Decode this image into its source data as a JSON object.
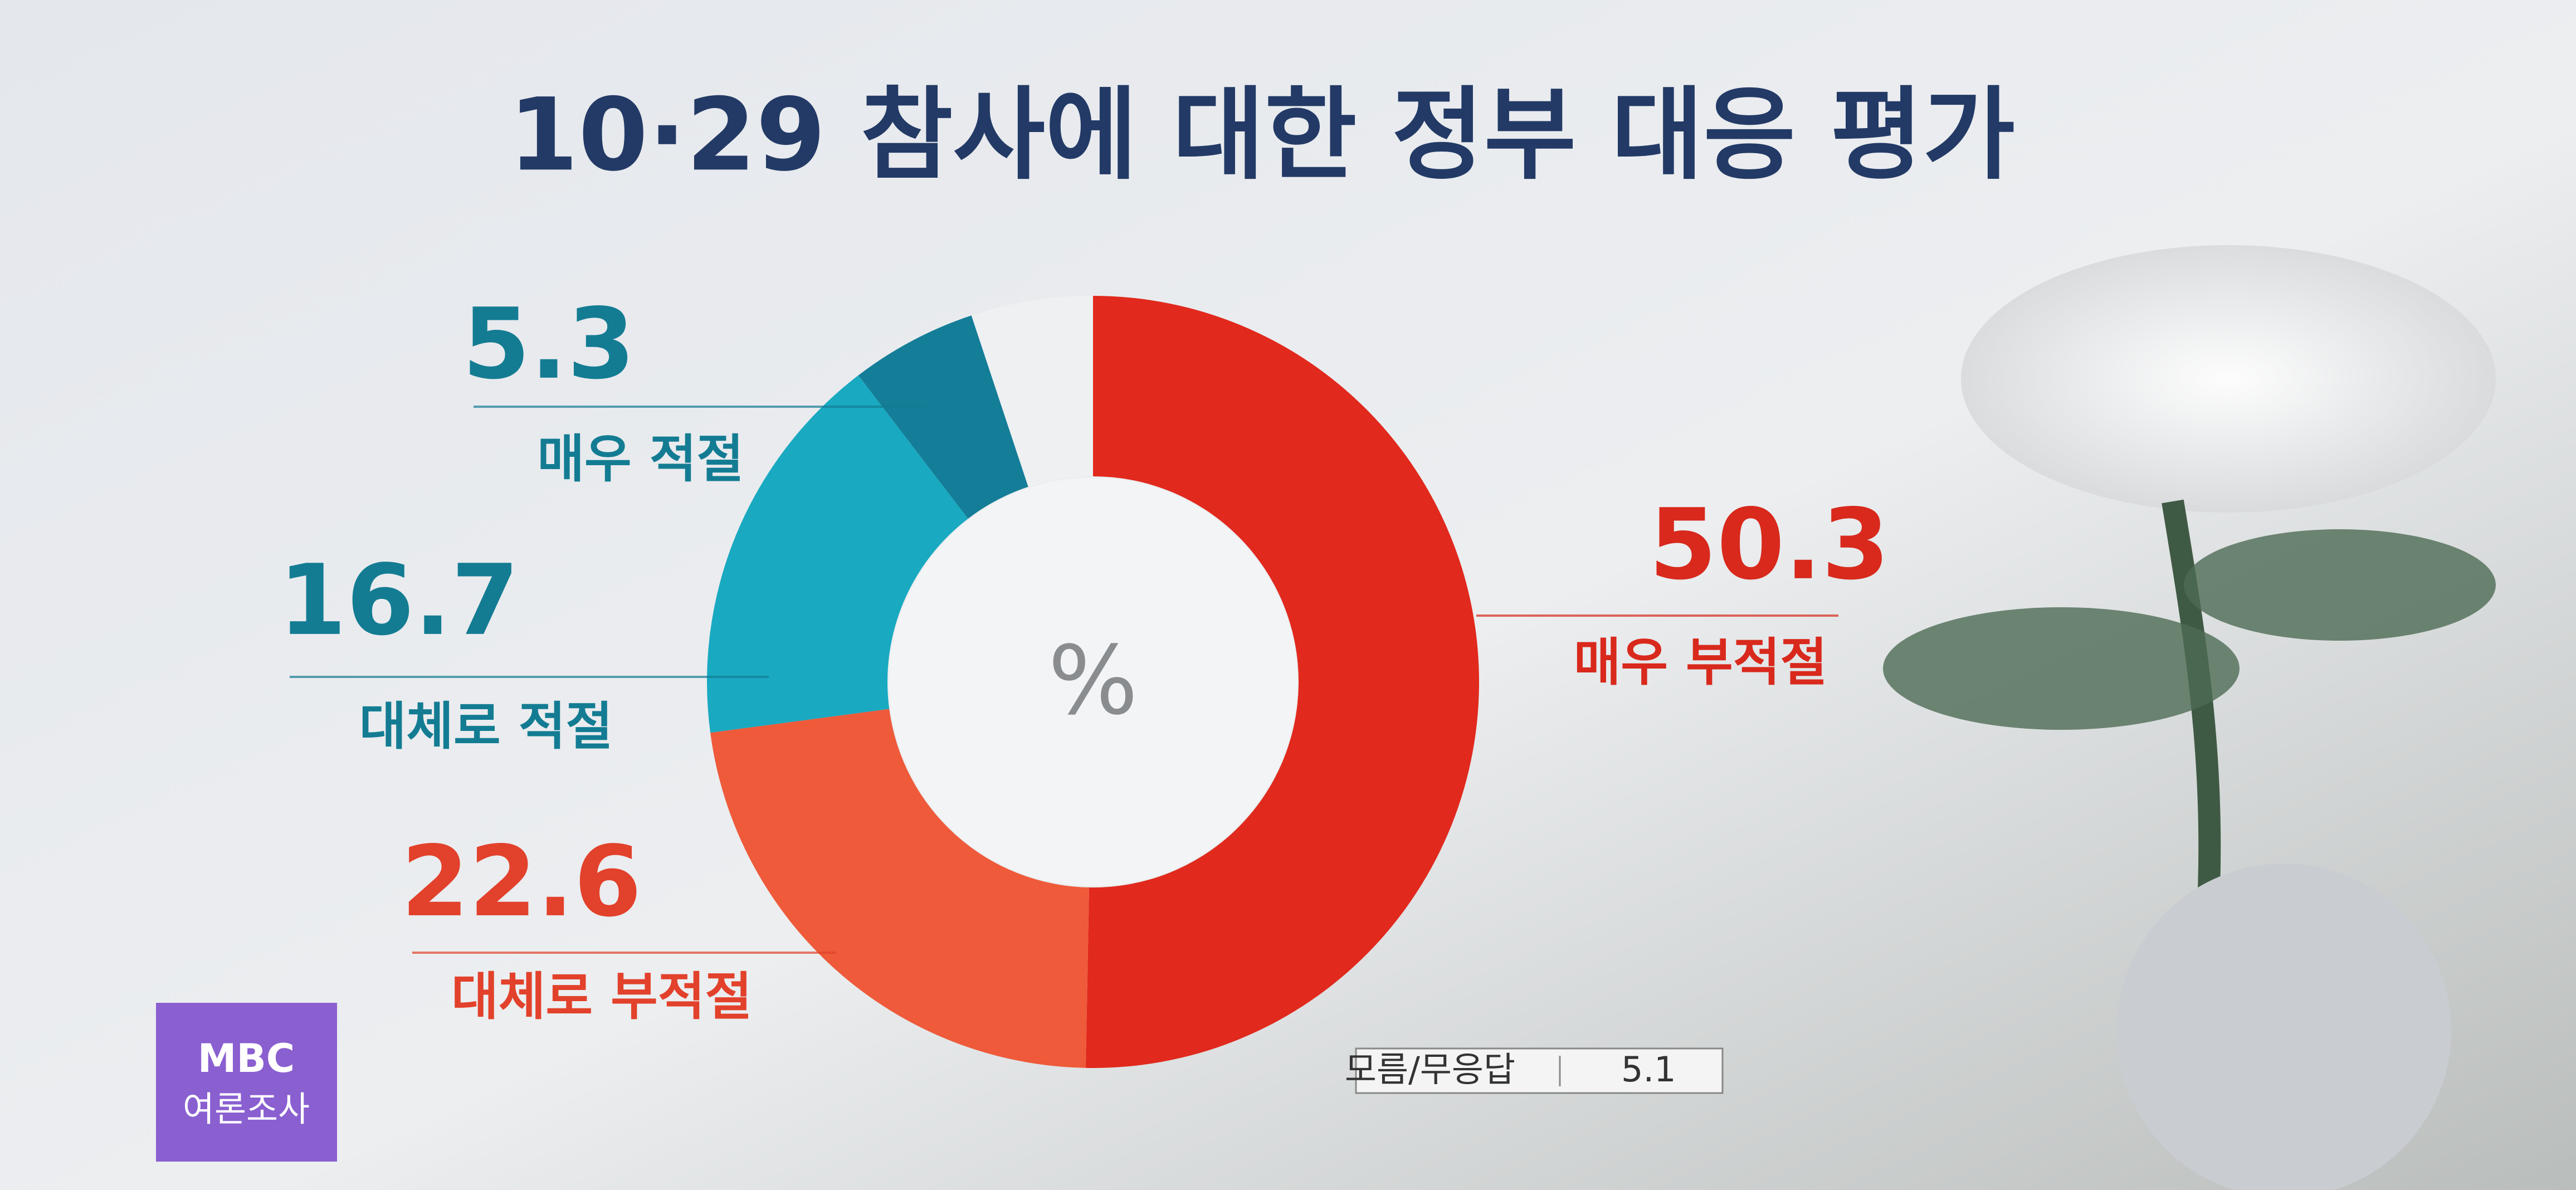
{
  "chart_data": {
    "type": "donut",
    "title": "10·29 참사에 대한 정부 대응 평가",
    "center_label": "%",
    "categories": [
      "매우 부적절",
      "대체로 부적절",
      "대체로 적절",
      "매우 적절",
      "모름/무응답"
    ],
    "values": [
      50.3,
      22.6,
      16.7,
      5.3,
      5.1
    ],
    "colors": [
      "#e1291d",
      "#ee5a3a",
      "#19a9c1",
      "#147d98",
      "#eef0f2"
    ],
    "label_colors": [
      "#d8291c",
      "#e2412b",
      "#137c93",
      "#137c93",
      "#333333"
    ]
  },
  "logo": {
    "line1": "MBC",
    "line2": "여론조사"
  }
}
